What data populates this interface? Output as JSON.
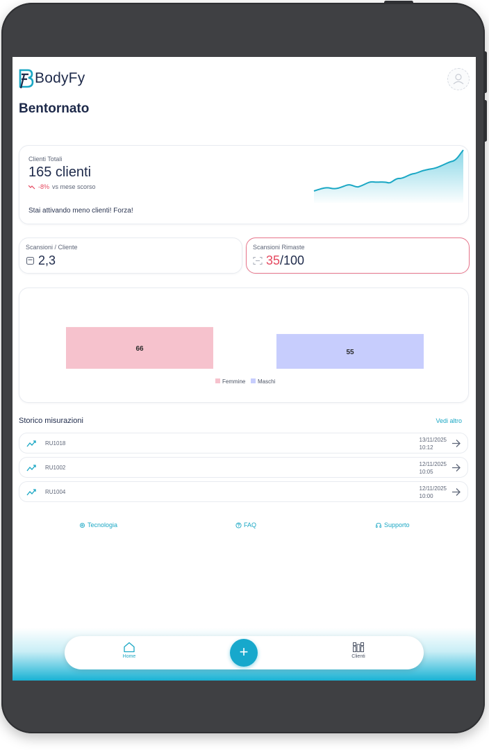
{
  "brand": {
    "name": "BodyFy"
  },
  "header": {
    "title": "Bentornato"
  },
  "clienti_totali": {
    "label": "Clienti Totali",
    "value": "165 clienti",
    "trend_value": "-8%",
    "trend_text": "vs mese scorso",
    "message": "Stai attivando meno clienti! Forza!"
  },
  "scansioni_cliente": {
    "label": "Scansioni / Cliente",
    "value": "2,3"
  },
  "scansioni_rimaste": {
    "label": "Scansioni Rimaste",
    "used": "35",
    "total": "/100"
  },
  "chart_data": {
    "type": "bar",
    "categories": [
      "Femmine",
      "Maschi"
    ],
    "values": [
      66,
      55
    ],
    "colors": [
      "#f6c2cd",
      "#c7cdfd"
    ],
    "legend": "bottom"
  },
  "storico": {
    "title": "Storico misurazioni",
    "more": "Vedi altro",
    "rows": [
      {
        "code": "RU1018",
        "date": "13/11/2025",
        "time": "10:12"
      },
      {
        "code": "RU1002",
        "date": "12/11/2025",
        "time": "10:05"
      },
      {
        "code": "RU1004",
        "date": "12/11/2025",
        "time": "10:00"
      }
    ]
  },
  "footer": {
    "tecnologia": "Tecnologia",
    "faq": "FAQ",
    "supporto": "Supporto"
  },
  "nav": {
    "home": "Home",
    "add": "+",
    "clienti": "Clienti"
  },
  "colors": {
    "accent": "#1aa7c4",
    "negative": "#e5485f"
  }
}
